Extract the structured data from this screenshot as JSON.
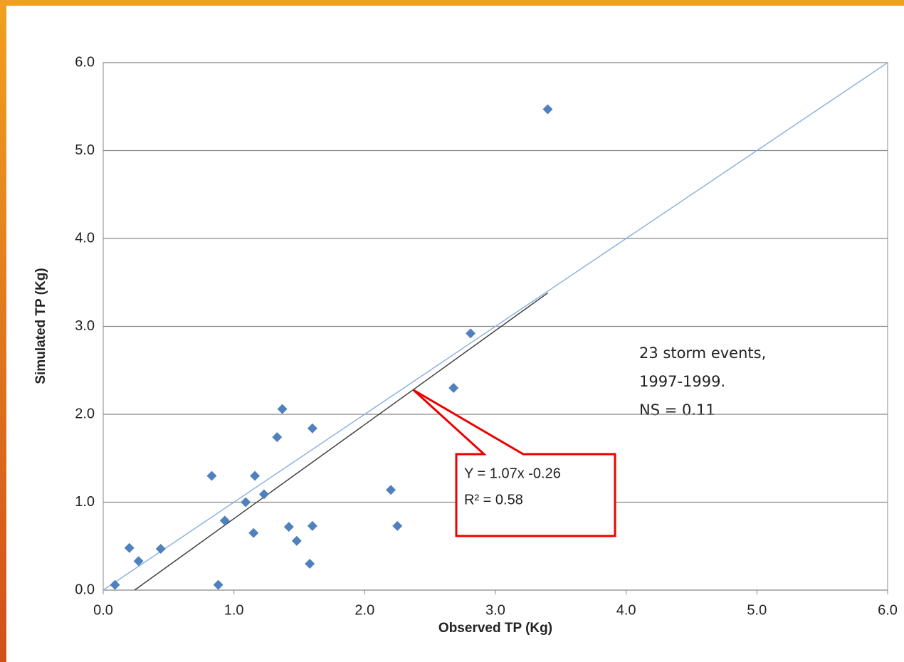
{
  "chart_data": {
    "type": "scatter",
    "x_label": "Observed TP (Kg)",
    "y_label": "Simulated TP  (Kg)",
    "series": [
      {
        "color": "#4f81bd",
        "x": [
          0.09,
          0.2,
          0.27,
          0.44,
          0.83,
          0.88,
          0.93,
          1.09,
          1.15,
          1.16,
          1.23,
          1.33,
          1.37,
          1.42,
          1.48,
          1.58,
          1.6,
          1.6,
          2.2,
          2.25,
          2.68,
          2.81,
          3.4
        ],
        "values": [
          0.06,
          0.48,
          0.33,
          0.47,
          1.3,
          0.06,
          0.79,
          1.0,
          0.65,
          1.3,
          1.09,
          1.74,
          2.06,
          0.72,
          0.56,
          0.3,
          0.73,
          1.84,
          1.14,
          0.73,
          2.3,
          2.92,
          5.47
        ]
      }
    ],
    "identity_line": {
      "x": [
        0,
        6
      ],
      "y": [
        0,
        6
      ],
      "color": "#8db3e2"
    },
    "trendline": {
      "x": [
        0.24,
        3.4
      ],
      "y": [
        0,
        3.38
      ],
      "color": "#404040"
    },
    "xlim": [
      0,
      6
    ],
    "ylim": [
      0,
      6
    ],
    "xticks": [
      {
        "value": 0,
        "label": "0.0"
      },
      {
        "value": 1,
        "label": "1.0"
      },
      {
        "value": 2,
        "label": "2.0"
      },
      {
        "value": 3,
        "label": "3.0"
      },
      {
        "value": 4,
        "label": "4.0"
      },
      {
        "value": 5,
        "label": "5.0"
      },
      {
        "value": 6,
        "label": "6.0"
      }
    ],
    "yticks": [
      {
        "value": 0,
        "label": "0.0"
      },
      {
        "value": 1,
        "label": "1.0"
      },
      {
        "value": 2,
        "label": "2.0"
      },
      {
        "value": 3,
        "label": "3.0"
      },
      {
        "value": 4,
        "label": "4.0"
      },
      {
        "value": 5,
        "label": "5.0"
      },
      {
        "value": 6,
        "label": "6.0"
      }
    ],
    "grid": true,
    "annotation": [
      "23 storm events,",
      "1997-1999.",
      "NS = 0.11"
    ],
    "callout": [
      "Y = 1.07x -0.26",
      "R² = 0.58"
    ]
  }
}
